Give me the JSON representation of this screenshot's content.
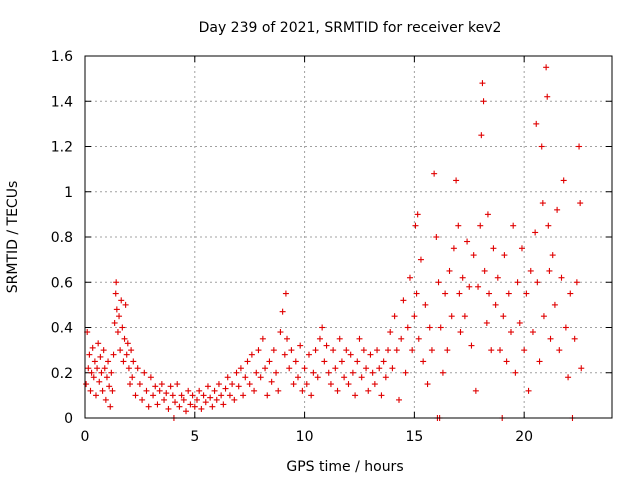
{
  "chart_data": {
    "type": "scatter",
    "title": "Day 239 of 2021, SRMTID for receiver kev2",
    "xlabel": "GPS time / hours",
    "ylabel": "SRMTID / TECUs",
    "xlim": [
      0,
      24
    ],
    "ylim": [
      0,
      1.6
    ],
    "xticks": [
      0,
      5,
      10,
      15,
      20
    ],
    "xtick_labels": [
      "0",
      "5",
      "10",
      "15",
      "20"
    ],
    "yticks": [
      0,
      0.2,
      0.4,
      0.6,
      0.8,
      1,
      1.2,
      1.4,
      1.6
    ],
    "ytick_labels": [
      "0",
      "0.2",
      "0.4",
      "0.6",
      "0.8",
      "1",
      "1.2",
      "1.4",
      "1.6"
    ],
    "grid": true,
    "marker": "+",
    "colors": {
      "series": "#e00000",
      "grid": "#a0a0a0",
      "axes": "#000000"
    },
    "series": [
      {
        "name": "SRMTID",
        "points": [
          [
            0.05,
            0.15
          ],
          [
            0.1,
            0.38
          ],
          [
            0.15,
            0.22
          ],
          [
            0.2,
            0.28
          ],
          [
            0.25,
            0.12
          ],
          [
            0.3,
            0.2
          ],
          [
            0.35,
            0.31
          ],
          [
            0.4,
            0.18
          ],
          [
            0.45,
            0.25
          ],
          [
            0.5,
            0.1
          ],
          [
            0.55,
            0.22
          ],
          [
            0.6,
            0.33
          ],
          [
            0.65,
            0.16
          ],
          [
            0.7,
            0.27
          ],
          [
            0.75,
            0.2
          ],
          [
            0.8,
            0.12
          ],
          [
            0.85,
            0.3
          ],
          [
            0.9,
            0.22
          ],
          [
            0.95,
            0.08
          ],
          [
            1.0,
            0.18
          ],
          [
            1.05,
            0.25
          ],
          [
            1.1,
            0.14
          ],
          [
            1.15,
            0.05
          ],
          [
            1.2,
            0.2
          ],
          [
            1.25,
            0.12
          ],
          [
            1.3,
            0.28
          ],
          [
            1.35,
            0.42
          ],
          [
            1.4,
            0.55
          ],
          [
            1.42,
            0.6
          ],
          [
            1.45,
            0.48
          ],
          [
            1.5,
            0.38
          ],
          [
            1.55,
            0.45
          ],
          [
            1.6,
            0.3
          ],
          [
            1.65,
            0.52
          ],
          [
            1.7,
            0.4
          ],
          [
            1.75,
            0.25
          ],
          [
            1.8,
            0.35
          ],
          [
            1.85,
            0.5
          ],
          [
            1.9,
            0.28
          ],
          [
            1.95,
            0.33
          ],
          [
            2.0,
            0.22
          ],
          [
            2.05,
            0.15
          ],
          [
            2.1,
            0.3
          ],
          [
            2.15,
            0.18
          ],
          [
            2.2,
            0.25
          ],
          [
            2.3,
            0.1
          ],
          [
            2.4,
            0.22
          ],
          [
            2.5,
            0.15
          ],
          [
            2.6,
            0.08
          ],
          [
            2.7,
            0.2
          ],
          [
            2.8,
            0.12
          ],
          [
            2.9,
            0.05
          ],
          [
            3.0,
            0.18
          ],
          [
            3.1,
            0.1
          ],
          [
            3.2,
            0.14
          ],
          [
            3.3,
            0.06
          ],
          [
            3.4,
            0.12
          ],
          [
            3.5,
            0.15
          ],
          [
            3.6,
            0.08
          ],
          [
            3.7,
            0.11
          ],
          [
            3.8,
            0.04
          ],
          [
            3.9,
            0.14
          ],
          [
            4.0,
            0.1
          ],
          [
            4.05,
            0.0
          ],
          [
            4.1,
            0.07
          ],
          [
            4.2,
            0.15
          ],
          [
            4.3,
            0.05
          ],
          [
            4.4,
            0.1
          ],
          [
            4.5,
            0.08
          ],
          [
            4.6,
            0.03
          ],
          [
            4.7,
            0.12
          ],
          [
            4.8,
            0.06
          ],
          [
            4.9,
            0.1
          ],
          [
            5.0,
            0.05
          ],
          [
            5.1,
            0.08
          ],
          [
            5.2,
            0.12
          ],
          [
            5.3,
            0.04
          ],
          [
            5.4,
            0.1
          ],
          [
            5.5,
            0.07
          ],
          [
            5.6,
            0.14
          ],
          [
            5.7,
            0.09
          ],
          [
            5.8,
            0.05
          ],
          [
            5.9,
            0.12
          ],
          [
            6.0,
            0.08
          ],
          [
            6.1,
            0.15
          ],
          [
            6.2,
            0.1
          ],
          [
            6.3,
            0.06
          ],
          [
            6.4,
            0.13
          ],
          [
            6.5,
            0.18
          ],
          [
            6.6,
            0.1
          ],
          [
            6.7,
            0.15
          ],
          [
            6.8,
            0.08
          ],
          [
            6.9,
            0.2
          ],
          [
            7.0,
            0.14
          ],
          [
            7.1,
            0.22
          ],
          [
            7.2,
            0.1
          ],
          [
            7.3,
            0.18
          ],
          [
            7.4,
            0.25
          ],
          [
            7.5,
            0.15
          ],
          [
            7.6,
            0.28
          ],
          [
            7.7,
            0.12
          ],
          [
            7.8,
            0.2
          ],
          [
            7.9,
            0.3
          ],
          [
            8.0,
            0.18
          ],
          [
            8.1,
            0.35
          ],
          [
            8.2,
            0.22
          ],
          [
            8.3,
            0.1
          ],
          [
            8.4,
            0.25
          ],
          [
            8.5,
            0.16
          ],
          [
            8.6,
            0.3
          ],
          [
            8.7,
            0.2
          ],
          [
            8.8,
            0.12
          ],
          [
            8.9,
            0.38
          ],
          [
            9.0,
            0.47
          ],
          [
            9.1,
            0.28
          ],
          [
            9.15,
            0.55
          ],
          [
            9.2,
            0.35
          ],
          [
            9.3,
            0.22
          ],
          [
            9.4,
            0.3
          ],
          [
            9.5,
            0.15
          ],
          [
            9.6,
            0.25
          ],
          [
            9.7,
            0.18
          ],
          [
            9.8,
            0.32
          ],
          [
            9.9,
            0.12
          ],
          [
            10.0,
            0.22
          ],
          [
            10.1,
            0.15
          ],
          [
            10.2,
            0.28
          ],
          [
            10.3,
            0.1
          ],
          [
            10.4,
            0.2
          ],
          [
            10.5,
            0.3
          ],
          [
            10.6,
            0.18
          ],
          [
            10.7,
            0.35
          ],
          [
            10.8,
            0.4
          ],
          [
            10.9,
            0.25
          ],
          [
            11.0,
            0.32
          ],
          [
            11.1,
            0.2
          ],
          [
            11.2,
            0.15
          ],
          [
            11.3,
            0.3
          ],
          [
            11.4,
            0.22
          ],
          [
            11.5,
            0.12
          ],
          [
            11.6,
            0.35
          ],
          [
            11.7,
            0.25
          ],
          [
            11.8,
            0.18
          ],
          [
            11.9,
            0.3
          ],
          [
            12.0,
            0.15
          ],
          [
            12.1,
            0.28
          ],
          [
            12.2,
            0.2
          ],
          [
            12.3,
            0.1
          ],
          [
            12.4,
            0.25
          ],
          [
            12.5,
            0.35
          ],
          [
            12.6,
            0.18
          ],
          [
            12.7,
            0.3
          ],
          [
            12.8,
            0.22
          ],
          [
            12.9,
            0.12
          ],
          [
            13.0,
            0.28
          ],
          [
            13.1,
            0.2
          ],
          [
            13.2,
            0.15
          ],
          [
            13.3,
            0.3
          ],
          [
            13.4,
            0.22
          ],
          [
            13.5,
            0.1
          ],
          [
            13.6,
            0.25
          ],
          [
            13.7,
            0.18
          ],
          [
            13.8,
            0.3
          ],
          [
            13.9,
            0.38
          ],
          [
            14.0,
            0.22
          ],
          [
            14.1,
            0.45
          ],
          [
            14.2,
            0.3
          ],
          [
            14.3,
            0.08
          ],
          [
            14.4,
            0.35
          ],
          [
            14.5,
            0.52
          ],
          [
            14.6,
            0.2
          ],
          [
            14.7,
            0.4
          ],
          [
            14.8,
            0.62
          ],
          [
            14.9,
            0.3
          ],
          [
            15.0,
            0.45
          ],
          [
            15.05,
            0.85
          ],
          [
            15.1,
            0.55
          ],
          [
            15.15,
            0.9
          ],
          [
            15.2,
            0.35
          ],
          [
            15.3,
            0.7
          ],
          [
            15.4,
            0.25
          ],
          [
            15.5,
            0.5
          ],
          [
            15.6,
            0.15
          ],
          [
            15.7,
            0.4
          ],
          [
            15.8,
            0.3
          ],
          [
            15.9,
            1.08
          ],
          [
            16.0,
            0.8
          ],
          [
            16.05,
            0.0
          ],
          [
            16.1,
            0.6
          ],
          [
            16.15,
            0.0
          ],
          [
            16.2,
            0.4
          ],
          [
            16.3,
            0.2
          ],
          [
            16.4,
            0.55
          ],
          [
            16.5,
            0.3
          ],
          [
            16.6,
            0.65
          ],
          [
            16.7,
            0.45
          ],
          [
            16.8,
            0.75
          ],
          [
            16.9,
            1.05
          ],
          [
            17.0,
            0.85
          ],
          [
            17.05,
            0.55
          ],
          [
            17.1,
            0.38
          ],
          [
            17.2,
            0.62
          ],
          [
            17.3,
            0.45
          ],
          [
            17.4,
            0.78
          ],
          [
            17.5,
            0.58
          ],
          [
            17.6,
            0.32
          ],
          [
            17.7,
            0.72
          ],
          [
            17.8,
            0.12
          ],
          [
            17.9,
            0.58
          ],
          [
            18.0,
            0.85
          ],
          [
            18.05,
            1.25
          ],
          [
            18.1,
            1.48
          ],
          [
            18.15,
            1.4
          ],
          [
            18.2,
            0.65
          ],
          [
            18.3,
            0.42
          ],
          [
            18.35,
            0.9
          ],
          [
            18.4,
            0.55
          ],
          [
            18.5,
            0.3
          ],
          [
            18.6,
            0.75
          ],
          [
            18.7,
            0.5
          ],
          [
            18.8,
            0.62
          ],
          [
            18.9,
            0.3
          ],
          [
            19.0,
            0.0
          ],
          [
            19.05,
            0.45
          ],
          [
            19.1,
            0.72
          ],
          [
            19.2,
            0.25
          ],
          [
            19.3,
            0.55
          ],
          [
            19.4,
            0.38
          ],
          [
            19.5,
            0.85
          ],
          [
            19.6,
            0.2
          ],
          [
            19.7,
            0.6
          ],
          [
            19.8,
            0.42
          ],
          [
            19.9,
            0.75
          ],
          [
            20.0,
            0.3
          ],
          [
            20.1,
            0.55
          ],
          [
            20.2,
            0.12
          ],
          [
            20.3,
            0.65
          ],
          [
            20.4,
            0.38
          ],
          [
            20.5,
            0.82
          ],
          [
            20.55,
            1.3
          ],
          [
            20.6,
            0.6
          ],
          [
            20.7,
            0.25
          ],
          [
            20.8,
            1.2
          ],
          [
            20.85,
            0.95
          ],
          [
            20.9,
            0.45
          ],
          [
            21.0,
            1.55
          ],
          [
            21.05,
            1.42
          ],
          [
            21.1,
            0.85
          ],
          [
            21.15,
            0.65
          ],
          [
            21.2,
            0.35
          ],
          [
            21.3,
            0.72
          ],
          [
            21.4,
            0.5
          ],
          [
            21.5,
            0.92
          ],
          [
            21.6,
            0.3
          ],
          [
            21.7,
            0.62
          ],
          [
            21.8,
            1.05
          ],
          [
            21.9,
            0.4
          ],
          [
            22.0,
            0.18
          ],
          [
            22.1,
            0.55
          ],
          [
            22.2,
            0.0
          ],
          [
            22.3,
            0.35
          ],
          [
            22.4,
            0.6
          ],
          [
            22.5,
            1.2
          ],
          [
            22.55,
            0.95
          ],
          [
            22.6,
            0.22
          ]
        ]
      }
    ]
  }
}
